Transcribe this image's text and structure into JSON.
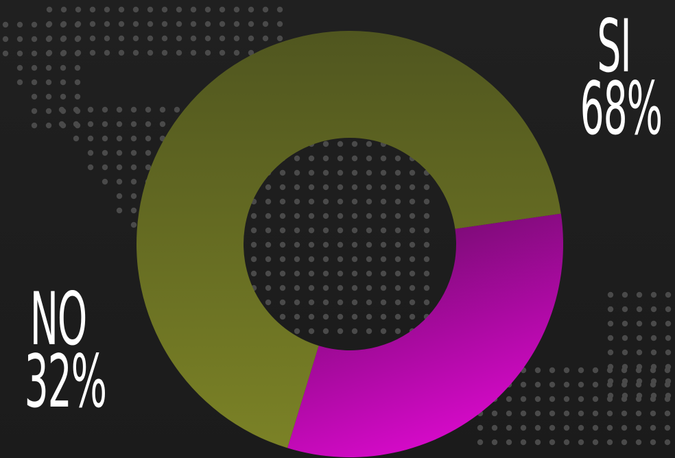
{
  "chart_data": {
    "type": "donut",
    "categories": [
      "SI",
      "NO"
    ],
    "values": [
      68,
      32
    ],
    "value_labels": [
      "68%",
      "32%"
    ],
    "colors": {
      "SI": [
        "#50561f",
        "#7b8226"
      ],
      "NO": [
        "#6e0b6a",
        "#e10ad3"
      ]
    },
    "legend": "outside-labels"
  },
  "labels": {
    "si": {
      "name": "SI",
      "value": "68%"
    },
    "no": {
      "name": "NO",
      "value": "32%"
    }
  },
  "theme": {
    "background": "#1e1e1e",
    "dots": "#4a4a4a",
    "text": "#ffffff"
  }
}
